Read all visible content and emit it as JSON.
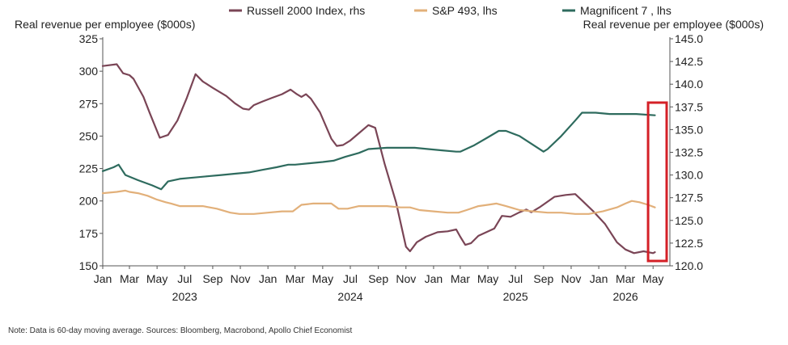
{
  "chart_data": {
    "type": "line",
    "y_left_label": "Real revenue per employee ($000s)",
    "y_right_label": "Real revenue per employee ($000s)",
    "y_left_range": [
      150,
      325
    ],
    "y_left_ticks": [
      "150",
      "175",
      "200",
      "225",
      "250",
      "275",
      "300",
      "325"
    ],
    "y_right_range": [
      120,
      145
    ],
    "y_right_ticks": [
      "120.0",
      "122.5",
      "125.0",
      "127.5",
      "130.0",
      "132.5",
      "135.0",
      "137.5",
      "140.0",
      "142.5",
      "145.0"
    ],
    "x_range": [
      "2023-01-01",
      "2026-05-31"
    ],
    "x_tick_labels": [
      {
        "label": "Jan",
        "date": "2023-01-01"
      },
      {
        "label": "Mar",
        "date": "2023-03-01"
      },
      {
        "label": "May",
        "date": "2023-05-01"
      },
      {
        "label": "Jul",
        "date": "2023-07-01"
      },
      {
        "label": "Sep",
        "date": "2023-09-01"
      },
      {
        "label": "Nov",
        "date": "2023-11-01"
      },
      {
        "label": "Jan",
        "date": "2024-01-01"
      },
      {
        "label": "Mar",
        "date": "2024-03-01"
      },
      {
        "label": "May",
        "date": "2024-05-01"
      },
      {
        "label": "Jul",
        "date": "2024-07-01"
      },
      {
        "label": "Sep",
        "date": "2024-09-01"
      },
      {
        "label": "Nov",
        "date": "2024-11-01"
      },
      {
        "label": "Jan",
        "date": "2025-01-01"
      },
      {
        "label": "Mar",
        "date": "2025-03-01"
      },
      {
        "label": "May",
        "date": "2025-05-01"
      },
      {
        "label": "Jul",
        "date": "2025-07-01"
      },
      {
        "label": "Sep",
        "date": "2025-09-01"
      },
      {
        "label": "Nov",
        "date": "2025-11-01"
      },
      {
        "label": "Jan",
        "date": "2026-01-01"
      },
      {
        "label": "Mar",
        "date": "2026-03-01"
      },
      {
        "label": "May",
        "date": "2026-05-01"
      }
    ],
    "year_labels": [
      {
        "label": "2023",
        "date": "2023-07-01"
      },
      {
        "label": "2024",
        "date": "2024-07-01"
      },
      {
        "label": "2025",
        "date": "2025-07-01"
      },
      {
        "label": "2026",
        "date": "2026-03-01"
      }
    ],
    "legend_position": "top",
    "grid": false,
    "highlight_box": {
      "date_from": "2026-04-20",
      "date_to": "2026-05-31",
      "color": "#d42027"
    },
    "series": [
      {
        "name": "Russell 2000 Index, rhs",
        "axis": "right",
        "color": "#7a4556",
        "points": [
          [
            "2023-01-01",
            142.0
          ],
          [
            "2023-02-01",
            142.2
          ],
          [
            "2023-02-15",
            141.2
          ],
          [
            "2023-03-01",
            141.0
          ],
          [
            "2023-03-10",
            140.6
          ],
          [
            "2023-04-01",
            138.6
          ],
          [
            "2023-04-15",
            136.8
          ],
          [
            "2023-05-07",
            134.1
          ],
          [
            "2023-05-25",
            134.4
          ],
          [
            "2023-06-15",
            136.0
          ],
          [
            "2023-07-05",
            138.4
          ],
          [
            "2023-07-25",
            141.1
          ],
          [
            "2023-08-10",
            140.3
          ],
          [
            "2023-09-01",
            139.6
          ],
          [
            "2023-10-01",
            138.7
          ],
          [
            "2023-10-20",
            137.9
          ],
          [
            "2023-11-07",
            137.3
          ],
          [
            "2023-11-20",
            137.2
          ],
          [
            "2023-12-01",
            137.7
          ],
          [
            "2023-12-20",
            138.1
          ],
          [
            "2024-01-10",
            138.5
          ],
          [
            "2024-02-01",
            138.9
          ],
          [
            "2024-02-20",
            139.4
          ],
          [
            "2024-03-05",
            138.9
          ],
          [
            "2024-03-15",
            138.6
          ],
          [
            "2024-03-25",
            138.9
          ],
          [
            "2024-04-05",
            138.4
          ],
          [
            "2024-04-25",
            136.9
          ],
          [
            "2024-05-20",
            134.0
          ],
          [
            "2024-06-01",
            133.2
          ],
          [
            "2024-06-15",
            133.3
          ],
          [
            "2024-07-01",
            133.8
          ],
          [
            "2024-07-20",
            134.6
          ],
          [
            "2024-08-10",
            135.5
          ],
          [
            "2024-08-25",
            135.2
          ],
          [
            "2024-09-15",
            131.2
          ],
          [
            "2024-10-10",
            127.0
          ],
          [
            "2024-11-01",
            122.1
          ],
          [
            "2024-11-10",
            121.6
          ],
          [
            "2024-11-25",
            122.6
          ],
          [
            "2024-12-15",
            123.2
          ],
          [
            "2025-01-10",
            123.7
          ],
          [
            "2025-02-01",
            123.8
          ],
          [
            "2025-02-20",
            124.0
          ],
          [
            "2025-03-01",
            123.2
          ],
          [
            "2025-03-12",
            122.3
          ],
          [
            "2025-03-25",
            122.5
          ],
          [
            "2025-04-10",
            123.3
          ],
          [
            "2025-05-15",
            124.1
          ],
          [
            "2025-06-01",
            125.5
          ],
          [
            "2025-06-20",
            125.4
          ],
          [
            "2025-07-10",
            125.9
          ],
          [
            "2025-07-25",
            126.2
          ],
          [
            "2025-08-05",
            125.9
          ],
          [
            "2025-08-25",
            126.5
          ],
          [
            "2025-09-25",
            127.6
          ],
          [
            "2025-10-20",
            127.8
          ],
          [
            "2025-11-10",
            127.9
          ],
          [
            "2025-11-25",
            127.2
          ],
          [
            "2025-12-20",
            126.0
          ],
          [
            "2026-01-15",
            124.6
          ],
          [
            "2026-02-10",
            122.6
          ],
          [
            "2026-03-01",
            121.8
          ],
          [
            "2026-03-20",
            121.4
          ],
          [
            "2026-04-10",
            121.6
          ],
          [
            "2026-05-01",
            121.4
          ],
          [
            "2026-05-05",
            121.5
          ]
        ]
      },
      {
        "name": "S&P 493, lhs",
        "axis": "left",
        "color": "#e2b07a",
        "points": [
          [
            "2023-01-01",
            206
          ],
          [
            "2023-02-01",
            207
          ],
          [
            "2023-02-20",
            208
          ],
          [
            "2023-03-01",
            207
          ],
          [
            "2023-03-20",
            206
          ],
          [
            "2023-04-10",
            204
          ],
          [
            "2023-05-01",
            201
          ],
          [
            "2023-05-20",
            199
          ],
          [
            "2023-06-01",
            198
          ],
          [
            "2023-06-20",
            196
          ],
          [
            "2023-07-15",
            196
          ],
          [
            "2023-08-10",
            196
          ],
          [
            "2023-09-10",
            194
          ],
          [
            "2023-10-10",
            191
          ],
          [
            "2023-10-30",
            190
          ],
          [
            "2023-12-01",
            190
          ],
          [
            "2024-01-01",
            191
          ],
          [
            "2024-02-01",
            192
          ],
          [
            "2024-02-25",
            192
          ],
          [
            "2024-03-15",
            197
          ],
          [
            "2024-04-10",
            198
          ],
          [
            "2024-05-10",
            198
          ],
          [
            "2024-05-20",
            198
          ],
          [
            "2024-06-05",
            194
          ],
          [
            "2024-06-25",
            194
          ],
          [
            "2024-07-20",
            196
          ],
          [
            "2024-08-20",
            196
          ],
          [
            "2024-09-20",
            196
          ],
          [
            "2024-10-20",
            195
          ],
          [
            "2024-11-10",
            195
          ],
          [
            "2024-12-01",
            193
          ],
          [
            "2025-01-01",
            192
          ],
          [
            "2025-02-01",
            191
          ],
          [
            "2025-02-25",
            191
          ],
          [
            "2025-03-15",
            193
          ],
          [
            "2025-04-10",
            196
          ],
          [
            "2025-05-01",
            197
          ],
          [
            "2025-05-20",
            198
          ],
          [
            "2025-06-10",
            196
          ],
          [
            "2025-07-10",
            193
          ],
          [
            "2025-08-10",
            192
          ],
          [
            "2025-09-10",
            191
          ],
          [
            "2025-10-10",
            191
          ],
          [
            "2025-11-10",
            190
          ],
          [
            "2025-12-10",
            190
          ],
          [
            "2026-01-10",
            192
          ],
          [
            "2026-02-10",
            195
          ],
          [
            "2026-03-01",
            198
          ],
          [
            "2026-03-15",
            200
          ],
          [
            "2026-04-01",
            199
          ],
          [
            "2026-04-20",
            197
          ],
          [
            "2026-05-05",
            195
          ]
        ]
      },
      {
        "name": "Magnificent 7 , lhs",
        "axis": "left",
        "color": "#2e6b5e",
        "points": [
          [
            "2023-01-01",
            223
          ],
          [
            "2023-01-25",
            226
          ],
          [
            "2023-02-05",
            228
          ],
          [
            "2023-02-20",
            220
          ],
          [
            "2023-03-20",
            216
          ],
          [
            "2023-04-20",
            212
          ],
          [
            "2023-05-10",
            209
          ],
          [
            "2023-05-25",
            215
          ],
          [
            "2023-06-20",
            217
          ],
          [
            "2023-07-20",
            218
          ],
          [
            "2023-08-20",
            219
          ],
          [
            "2023-09-20",
            220
          ],
          [
            "2023-10-20",
            221
          ],
          [
            "2023-11-20",
            222
          ],
          [
            "2023-12-20",
            224
          ],
          [
            "2024-01-20",
            226
          ],
          [
            "2024-02-15",
            228
          ],
          [
            "2024-03-01",
            228
          ],
          [
            "2024-04-01",
            229
          ],
          [
            "2024-05-01",
            230
          ],
          [
            "2024-05-25",
            231
          ],
          [
            "2024-06-20",
            234
          ],
          [
            "2024-07-20",
            237
          ],
          [
            "2024-08-10",
            240
          ],
          [
            "2024-09-20",
            241
          ],
          [
            "2024-10-20",
            241
          ],
          [
            "2024-11-20",
            241
          ],
          [
            "2024-12-20",
            240
          ],
          [
            "2025-01-20",
            239
          ],
          [
            "2025-02-20",
            238
          ],
          [
            "2025-03-01",
            238
          ],
          [
            "2025-04-01",
            243
          ],
          [
            "2025-05-01",
            249
          ],
          [
            "2025-05-25",
            254
          ],
          [
            "2025-06-10",
            254
          ],
          [
            "2025-07-10",
            250
          ],
          [
            "2025-08-10",
            243
          ],
          [
            "2025-09-01",
            238
          ],
          [
            "2025-09-10",
            240
          ],
          [
            "2025-10-10",
            250
          ],
          [
            "2025-11-10",
            262
          ],
          [
            "2025-11-25",
            268
          ],
          [
            "2025-12-25",
            268
          ],
          [
            "2026-01-25",
            267
          ],
          [
            "2026-02-25",
            267
          ],
          [
            "2026-03-25",
            267
          ],
          [
            "2026-05-05",
            266
          ]
        ]
      }
    ]
  },
  "note": "Note: Data is 60-day moving average. Sources: Bloomberg, Macrobond, Apollo Chief Economist"
}
